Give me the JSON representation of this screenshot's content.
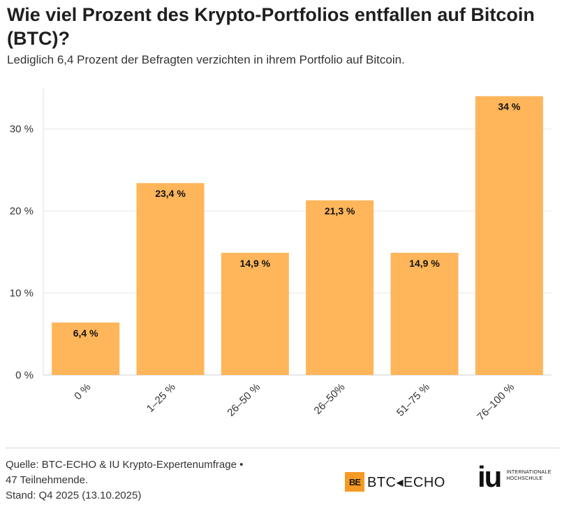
{
  "title": "Wie viel Prozent des Krypto-Portfolios entfallen auf Bitcoin (BTC)?",
  "subtitle": "Lediglich 6,4 Prozent der Befragten verzichten in ihrem Portfolio auf Bitcoin.",
  "footer": {
    "source_lines": [
      "Quelle: BTC-ECHO & IU Krypto-Expertenumfrage •",
      "47 Teilnehmende.",
      "Stand: Q4 2025 (13.10.2025)"
    ],
    "logo_btc_mark": "BЕ",
    "logo_btc_text": "BTC◂ECHO",
    "logo_iu_mark": "iu",
    "logo_iu_text_1": "INTERNATIONALE",
    "logo_iu_text_2": "HOCHSCHULE"
  },
  "colors": {
    "bar": "#ffb55a",
    "grid": "#e6e6e6",
    "text": "#333333",
    "brand_orange": "#f59a23"
  },
  "chart_data": {
    "type": "bar",
    "title": "Wie viel Prozent des Krypto-Portfolios entfallen auf Bitcoin (BTC)?",
    "xlabel": "",
    "ylabel": "",
    "categories": [
      "0 %",
      "1–25 %",
      "26–50 %",
      "26–50%",
      "51–75 %",
      "76–100 %"
    ],
    "values": [
      6.4,
      23.4,
      14.9,
      21.3,
      14.9,
      34
    ],
    "value_labels": [
      "6,4 %",
      "23,4 %",
      "14,9 %",
      "21,3 %",
      "14,9 %",
      "34 %"
    ],
    "ylim": [
      0,
      35
    ],
    "yticks": [
      0,
      10,
      20,
      30
    ],
    "ytick_labels": [
      "0 %",
      "10 %",
      "20 %",
      "30 %"
    ],
    "grid": true,
    "legend": "none"
  }
}
